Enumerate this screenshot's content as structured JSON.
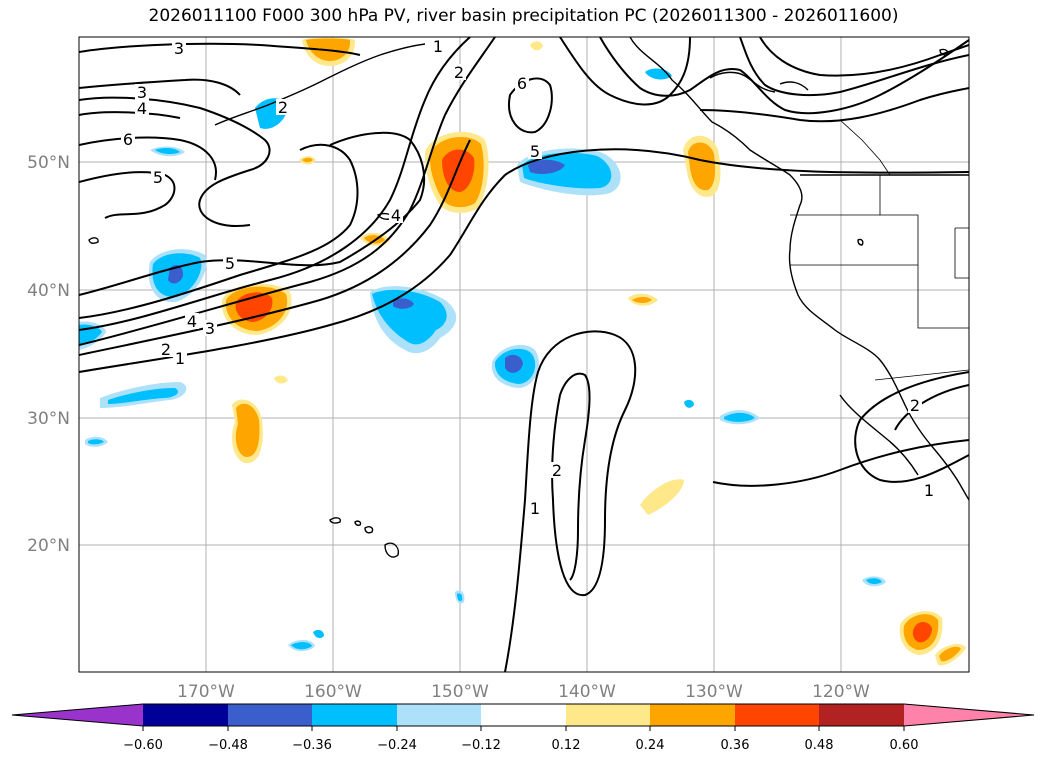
{
  "title": "2026011100 F000 300 hPa PV, river basin precipitation PC (2026011300 - 2026011600)",
  "lat_labels": [
    "50°N",
    "40°N",
    "30°N",
    "20°N"
  ],
  "lon_labels": [
    "170°W",
    "160°W",
    "150°W",
    "140°W",
    "130°W",
    "120°W"
  ],
  "pv_contour_labels": [
    "3",
    "3",
    "4",
    "6",
    "5",
    "5",
    "4",
    "3",
    "2",
    "1",
    "1",
    "2",
    "6",
    "5",
    "4",
    "2",
    "2",
    "1",
    "2",
    "1"
  ],
  "colorbar": {
    "ticks": [
      "−0.60",
      "−0.48",
      "−0.36",
      "−0.24",
      "−0.12",
      "0.12",
      "0.24",
      "0.36",
      "0.48",
      "0.60"
    ],
    "colors": [
      "#9933cc",
      "#000099",
      "#3a5fcd",
      "#00bfff",
      "#ade1fa",
      "#ffffff",
      "#ffe88a",
      "#ffa500",
      "#ff4500",
      "#b22222",
      "#ff82ab"
    ]
  }
}
